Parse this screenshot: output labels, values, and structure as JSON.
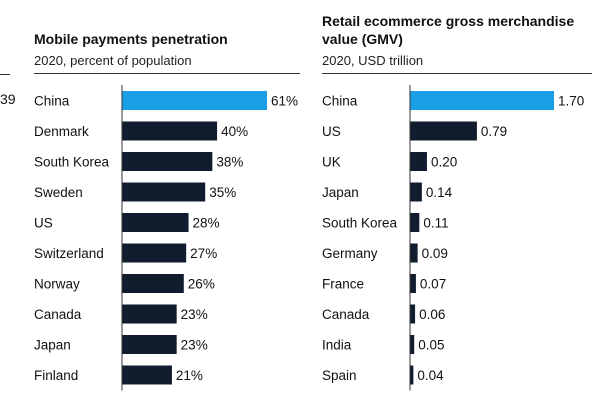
{
  "clipped_left_value": "39",
  "colors": {
    "highlight": "#1a9ee6",
    "bar": "#111d2e",
    "axis": "#333333"
  },
  "chart_data": [
    {
      "type": "bar",
      "orientation": "horizontal",
      "title": "Mobile payments penetration",
      "subtitle": "2020, percent of population",
      "categories": [
        "China",
        "Denmark",
        "South Korea",
        "Sweden",
        "US",
        "Switzerland",
        "Norway",
        "Canada",
        "Japan",
        "Finland"
      ],
      "values": [
        61,
        40,
        38,
        35,
        28,
        27,
        26,
        23,
        23,
        21
      ],
      "labels": [
        "61%",
        "40%",
        "38%",
        "35%",
        "28%",
        "27%",
        "26%",
        "23%",
        "23%",
        "21%"
      ],
      "highlight_index": 0,
      "xlim": [
        0,
        61
      ]
    },
    {
      "type": "bar",
      "orientation": "horizontal",
      "title": "Retail ecommerce gross merchandise value (GMV)",
      "subtitle": "2020, USD trillion",
      "categories": [
        "China",
        "US",
        "UK",
        "Japan",
        "South Korea",
        "Germany",
        "France",
        "Canada",
        "India",
        "Spain"
      ],
      "values": [
        1.7,
        0.79,
        0.2,
        0.14,
        0.11,
        0.09,
        0.07,
        0.06,
        0.05,
        0.04
      ],
      "labels": [
        "1.70",
        "0.79",
        "0.20",
        "0.14",
        "0.11",
        "0.09",
        "0.07",
        "0.06",
        "0.05",
        "0.04"
      ],
      "highlight_index": 0,
      "xlim": [
        0,
        1.7
      ]
    }
  ]
}
